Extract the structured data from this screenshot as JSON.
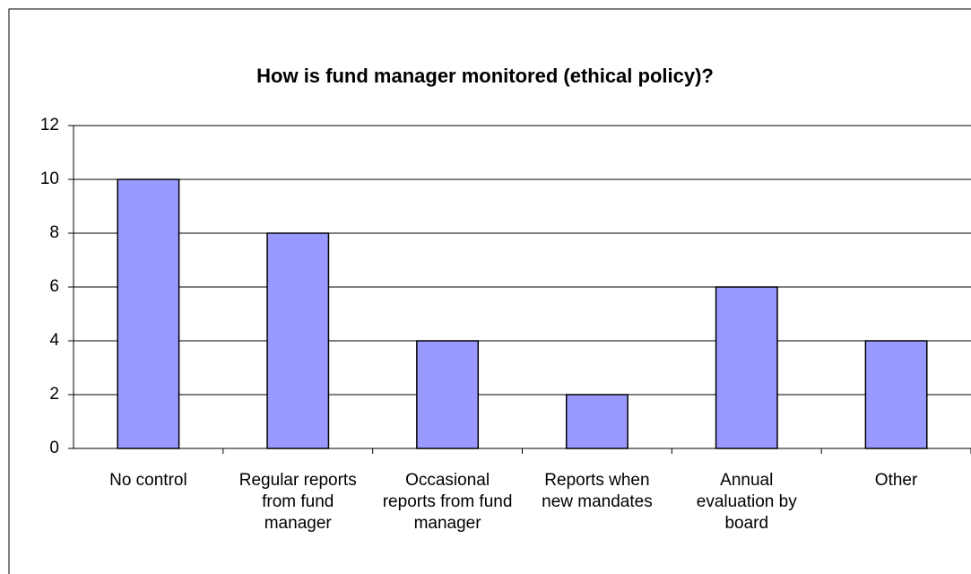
{
  "chart_data": {
    "type": "bar",
    "title": "How is fund manager monitored (ethical policy)?",
    "categories": [
      "No control",
      "Regular reports from fund manager",
      "Occasional reports from fund manager",
      "Reports when new mandates",
      "Annual evaluation by board",
      "Other"
    ],
    "values": [
      10,
      8,
      4,
      2,
      6,
      4
    ],
    "color": "#9999ff",
    "ylim": [
      0,
      12
    ],
    "yticks": [
      0,
      2,
      4,
      6,
      8,
      10,
      12
    ],
    "grid": true
  }
}
